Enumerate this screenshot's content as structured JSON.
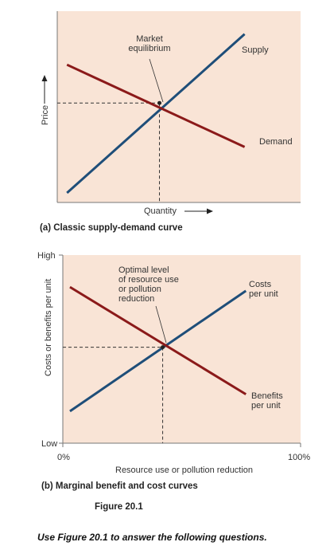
{
  "colors": {
    "panel": "#f9e4d6",
    "supply": "#1f4e79",
    "demand": "#8b1a1a",
    "axis": "#555555"
  },
  "chart_data": [
    {
      "type": "line",
      "caption": "(a) Classic supply-demand curve",
      "xlabel": "Quantity",
      "ylabel": "Price",
      "xlim": [
        0,
        1
      ],
      "ylim": [
        0,
        1
      ],
      "series": [
        {
          "name": "Supply",
          "color": "#1f4e79",
          "points": [
            [
              0.04,
              0.05
            ],
            [
              0.77,
              0.88
            ]
          ]
        },
        {
          "name": "Demand",
          "color": "#8b1a1a",
          "points": [
            [
              0.04,
              0.72
            ],
            [
              0.77,
              0.29
            ]
          ]
        }
      ],
      "annotation": {
        "text": [
          "Market",
          "equilibrium"
        ],
        "point": [
          0.42,
          0.52
        ]
      }
    },
    {
      "type": "line",
      "caption": "(b) Marginal benefit and cost curves",
      "xlabel": "Resource use or pollution reduction",
      "ylabel": "Costs or benefits per unit",
      "x_tick_labels": [
        "0%",
        "100%"
      ],
      "y_tick_labels": [
        "Low",
        "High"
      ],
      "xlim": [
        0,
        100
      ],
      "ylim": [
        0,
        1
      ],
      "series": [
        {
          "name": [
            "Costs",
            "per unit"
          ],
          "color": "#1f4e79",
          "points": [
            [
              3,
              0.17
            ],
            [
              77,
              0.81
            ]
          ]
        },
        {
          "name": [
            "Benefits",
            "per unit"
          ],
          "color": "#8b1a1a",
          "points": [
            [
              3,
              0.83
            ],
            [
              77,
              0.26
            ]
          ]
        }
      ],
      "annotation": {
        "text": [
          "Optimal level",
          "of resource use",
          "or pollution",
          "reduction"
        ],
        "point": [
          42,
          0.51
        ]
      }
    }
  ],
  "figure_label": "Figure 20.1",
  "instruction": "Use Figure 20.1 to answer the following questions."
}
